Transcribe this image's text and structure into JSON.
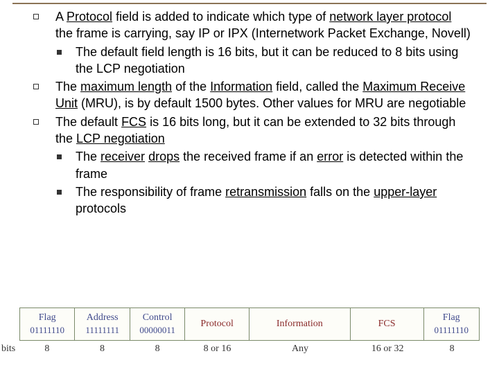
{
  "bullets": {
    "b1_pre": "A ",
    "b1_u1": "Protocol",
    "b1_mid1": " field is added to indicate which type of ",
    "b1_u2": "network layer protocol",
    "b1_post": " the frame is carrying, say IP or IPX (Internetwork Packet Exchange, Novell)",
    "b1_sub1": "The default field length is 16 bits, but it can be reduced to 8 bits using the LCP negotiation",
    "b2_pre": "The ",
    "b2_u1": "maximum length",
    "b2_mid1": " of the ",
    "b2_u2": "Information",
    "b2_mid2": " field, called the ",
    "b2_u3": "Maximum Receive Unit",
    "b2_post": "  (MRU),  is by default 1500 bytes. Other values for MRU are negotiable",
    "b3_pre": "The default ",
    "b3_u1": "FCS",
    "b3_mid1": " is 16 bits long, but it can be extended to 32 bits through the ",
    "b3_u2": "LCP negotiation",
    "b3s1_pre": "The ",
    "b3s1_u1": "receiver",
    "b3s1_mid1": " ",
    "b3s1_u2": "drops",
    "b3s1_mid2": " the received frame if an ",
    "b3s1_u3": "error",
    "b3s1_post": " is detected within the frame",
    "b3s2_pre": "The responsibility of  frame ",
    "b3s2_u1": "retransmission",
    "b3s2_mid1": " falls on the ",
    "b3s2_u2": "upper-layer",
    "b3s2_post": " protocols"
  },
  "frame": {
    "bits_label": "bits",
    "cells": [
      {
        "label": "Flag",
        "value": "01111110",
        "bits": "8",
        "w": 12,
        "cls": "cell-lbl"
      },
      {
        "label": "Address",
        "value": "11111111",
        "bits": "8",
        "w": 12,
        "cls": "cell-lbl"
      },
      {
        "label": "Control",
        "value": "00000011",
        "bits": "8",
        "w": 12,
        "cls": "cell-lbl"
      },
      {
        "label": "Protocol",
        "value": "",
        "bits": "8 or 16",
        "w": 14,
        "cls": "cell-lbl2"
      },
      {
        "label": "Information",
        "value": "",
        "bits": "Any",
        "w": 22,
        "cls": "cell-lbl2"
      },
      {
        "label": "FCS",
        "value": "",
        "bits": "16 or 32",
        "w": 16,
        "cls": "cell-lbl2"
      },
      {
        "label": "Flag",
        "value": "01111110",
        "bits": "8",
        "w": 12,
        "cls": "cell-lbl"
      }
    ]
  },
  "colors": {
    "border_top": "#8b7355",
    "cell_blue": "#404a8c",
    "cell_red": "#8a2a2a",
    "table_border": "#7a8a6a",
    "table_bg": "#fdfdf8"
  }
}
